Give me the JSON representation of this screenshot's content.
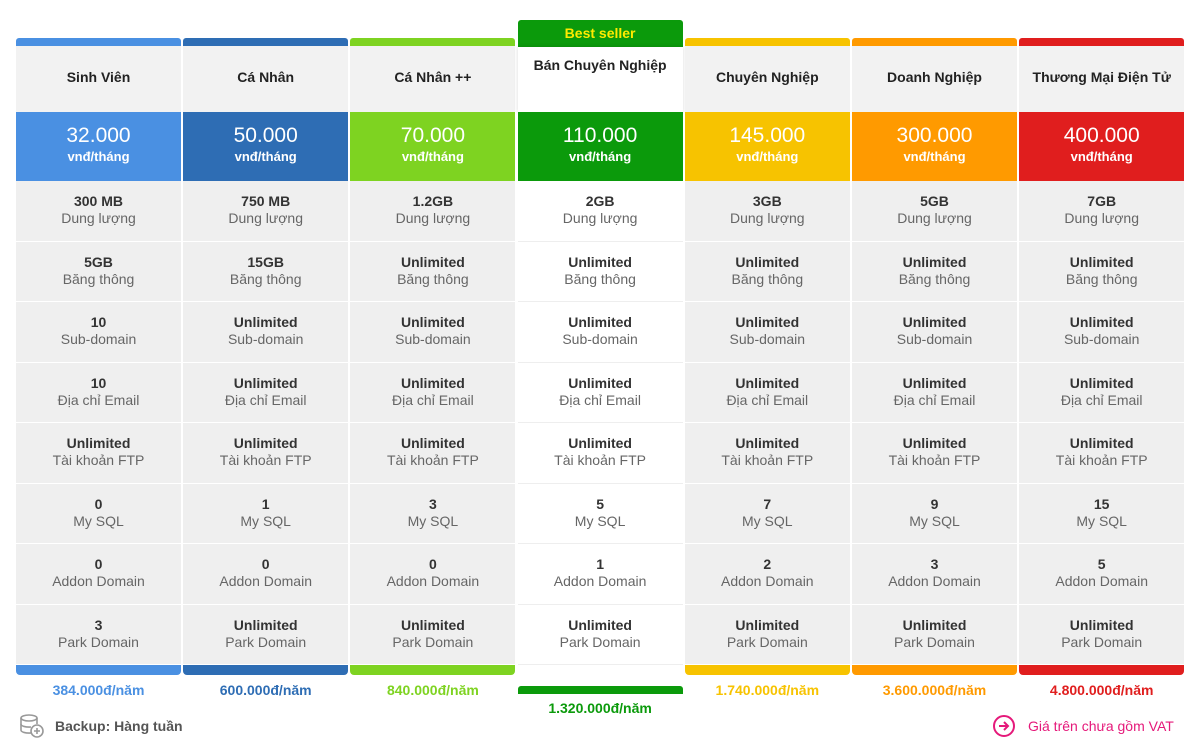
{
  "badge": "Best seller",
  "price_unit": "vnđ/tháng",
  "feature_labels": [
    "Dung lượng",
    "Băng thông",
    "Sub-domain",
    "Địa chỉ Email",
    "Tài khoản FTP",
    "My SQL",
    "Addon Domain",
    "Park Domain"
  ],
  "featured_plan": 3,
  "plans": [
    {
      "name": "Sinh Viên",
      "color": "#4a90e2",
      "price": "32.000",
      "features": [
        "300 MB",
        "5GB",
        "10",
        "10",
        "Unlimited",
        "0",
        "0",
        "3"
      ],
      "yearly": "384.000đ/năm"
    },
    {
      "name": "Cá Nhân",
      "color": "#2e6db4",
      "price": "50.000",
      "features": [
        "750 MB",
        "15GB",
        "Unlimited",
        "Unlimited",
        "Unlimited",
        "1",
        "0",
        "Unlimited"
      ],
      "yearly": "600.000đ/năm"
    },
    {
      "name": "Cá Nhân ++",
      "color": "#7ed321",
      "price": "70.000",
      "features": [
        "1.2GB",
        "Unlimited",
        "Unlimited",
        "Unlimited",
        "Unlimited",
        "3",
        "0",
        "Unlimited"
      ],
      "yearly": "840.000đ/năm"
    },
    {
      "name": "Bán Chuyên Nghiệp",
      "color": "#0b9a0b",
      "price": "110.000",
      "features": [
        "2GB",
        "Unlimited",
        "Unlimited",
        "Unlimited",
        "Unlimited",
        "5",
        "1",
        "Unlimited"
      ],
      "yearly": "1.320.000đ/năm"
    },
    {
      "name": "Chuyên Nghiệp",
      "color": "#f7c300",
      "price": "145.000",
      "features": [
        "3GB",
        "Unlimited",
        "Unlimited",
        "Unlimited",
        "Unlimited",
        "7",
        "2",
        "Unlimited"
      ],
      "yearly": "1.740.000đ/năm"
    },
    {
      "name": "Doanh Nghiệp",
      "color": "#ff9a00",
      "price": "300.000",
      "features": [
        "5GB",
        "Unlimited",
        "Unlimited",
        "Unlimited",
        "Unlimited",
        "9",
        "3",
        "Unlimited"
      ],
      "yearly": "3.600.000đ/năm"
    },
    {
      "name": "Thương Mại Điện Tử",
      "color": "#e01e1e",
      "price": "400.000",
      "features": [
        "7GB",
        "Unlimited",
        "Unlimited",
        "Unlimited",
        "Unlimited",
        "15",
        "5",
        "Unlimited"
      ],
      "yearly": "4.800.000đ/năm"
    }
  ],
  "footer": {
    "backup": "Backup: Hàng tuần",
    "vat": "Giá trên chưa gồm VAT"
  }
}
